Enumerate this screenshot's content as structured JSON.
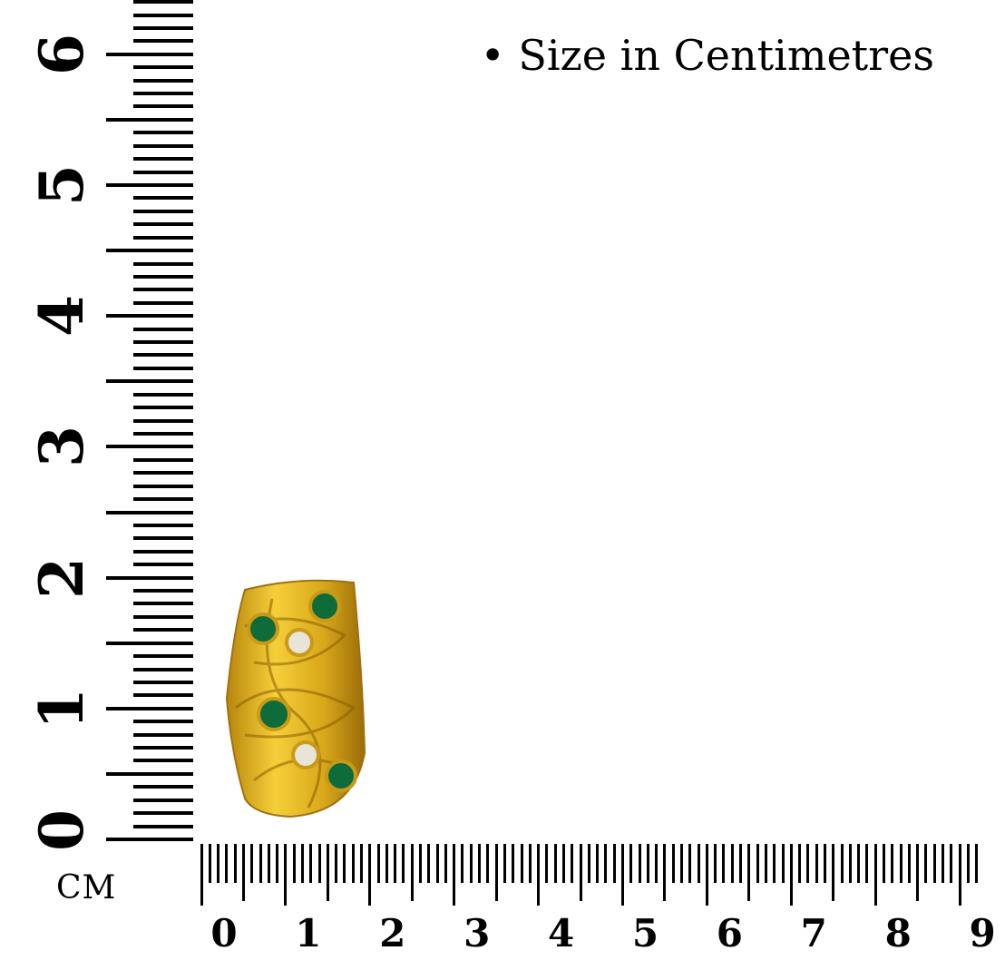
{
  "caption": "• Size in Centimetres",
  "unit_label": "CM",
  "vertical_ruler": {
    "labels": [
      "0",
      "1",
      "2",
      "3",
      "4",
      "5",
      "6"
    ],
    "max_cm": 6.4
  },
  "horizontal_ruler": {
    "labels": [
      "0",
      "1",
      "2",
      "3",
      "4",
      "5",
      "6",
      "7",
      "8",
      "9"
    ],
    "max_cm": 9.2
  },
  "product": {
    "name": "gold ring with green and white stones",
    "size_cm": {
      "height": 1.9,
      "width": 1.6
    }
  },
  "colors": {
    "gold": "#e0b020",
    "stone_green": "#0e6b3a",
    "stone_white": "#e8e4d8"
  }
}
